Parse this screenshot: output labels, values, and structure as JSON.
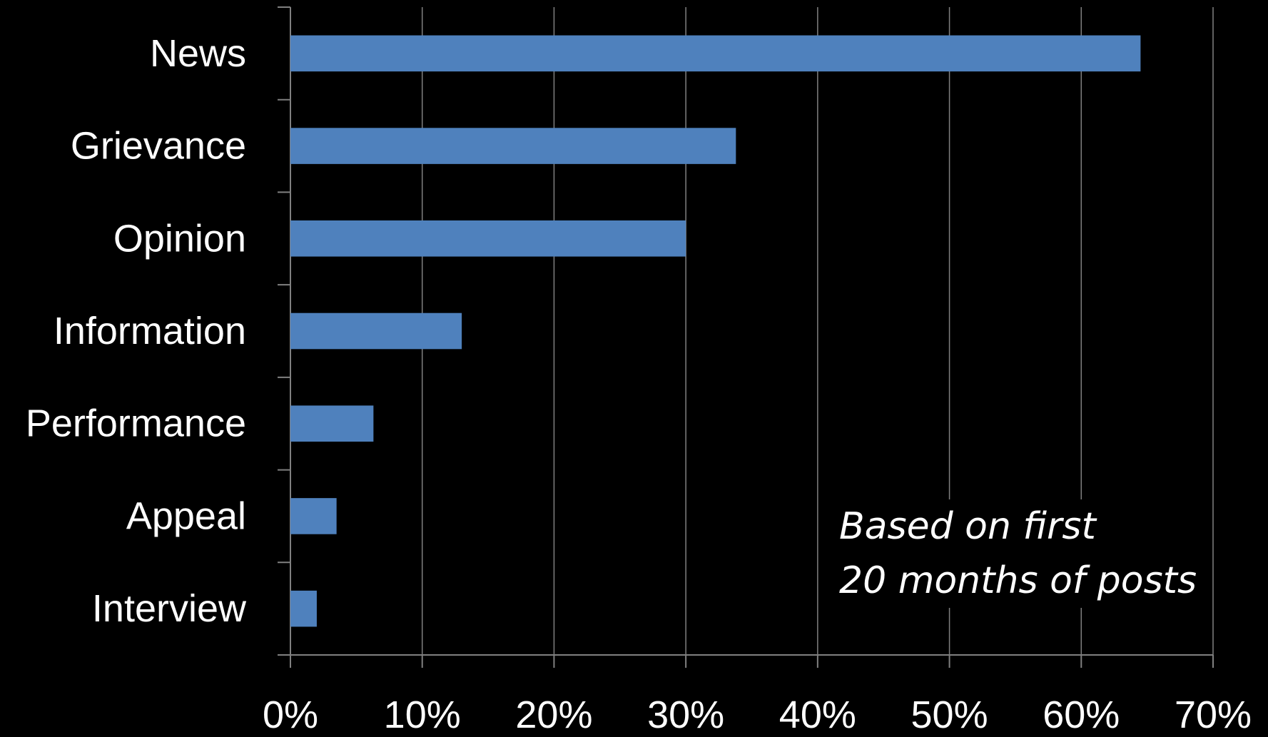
{
  "chart_data": {
    "type": "bar",
    "orientation": "horizontal",
    "categories": [
      "News",
      "Grievance",
      "Opinion",
      "Information",
      "Performance",
      "Appeal",
      "Interview"
    ],
    "values": [
      64.5,
      33.8,
      30.0,
      13.0,
      6.3,
      3.5,
      2.0
    ],
    "value_unit": "%",
    "xlim": [
      0,
      70
    ],
    "x_ticks": [
      0,
      10,
      20,
      30,
      40,
      50,
      60,
      70
    ],
    "x_tick_labels": [
      "0%",
      "10%",
      "20%",
      "30%",
      "40%",
      "50%",
      "60%",
      "70%"
    ],
    "title": "",
    "xlabel": "",
    "ylabel": "",
    "grid": "vertical",
    "legend": "none",
    "annotation": [
      "Based on first",
      "20 months of posts"
    ],
    "colors": {
      "bar": "#4F81BD",
      "background": "#000000",
      "text": "#ffffff",
      "grid": "#808080"
    }
  }
}
